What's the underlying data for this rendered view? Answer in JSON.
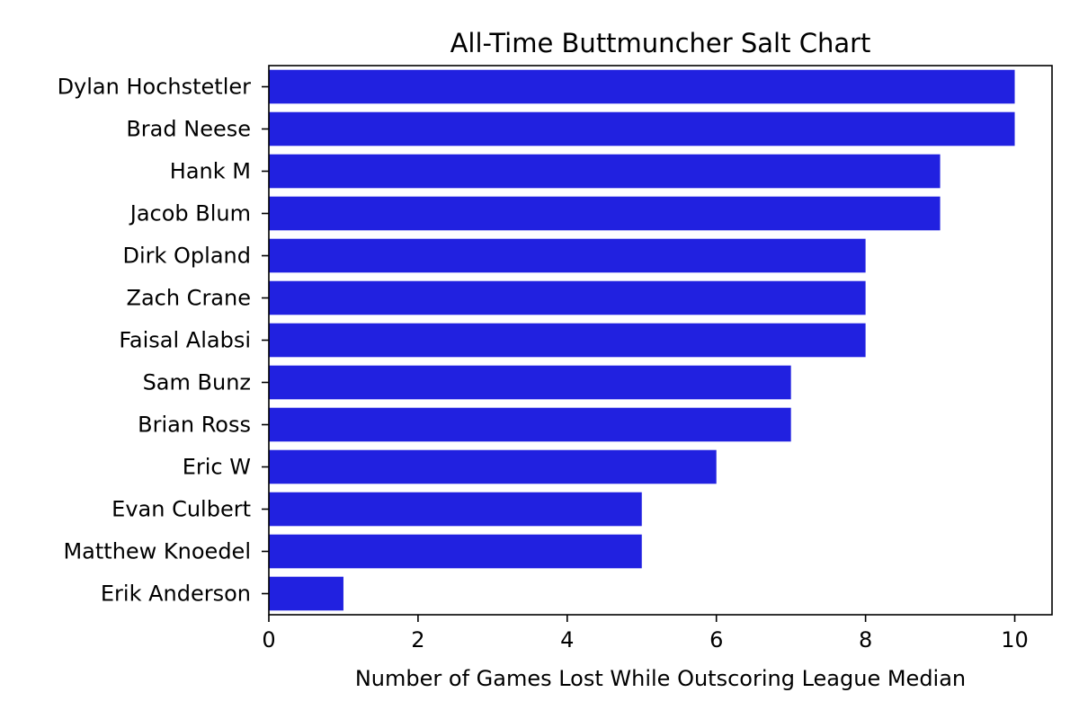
{
  "chart_data": {
    "type": "bar",
    "orientation": "horizontal",
    "title": "All-Time Buttmuncher Salt Chart",
    "xlabel": "Number of Games Lost While Outscoring League Median",
    "ylabel": "",
    "xlim": [
      0,
      10.5
    ],
    "xticks": [
      0,
      2,
      4,
      6,
      8,
      10
    ],
    "grid": false,
    "bar_color": "#2121e0",
    "categories": [
      "Dylan Hochstetler",
      "Brad Neese",
      "Hank M",
      "Jacob Blum",
      "Dirk Opland",
      "Zach Crane",
      "Faisal Alabsi",
      "Sam Bunz",
      "Brian Ross",
      "Eric W",
      "Evan Culbert",
      "Matthew Knoedel",
      "Erik Anderson"
    ],
    "values": [
      10,
      10,
      9,
      9,
      8,
      8,
      8,
      7,
      7,
      6,
      5,
      5,
      1
    ]
  }
}
